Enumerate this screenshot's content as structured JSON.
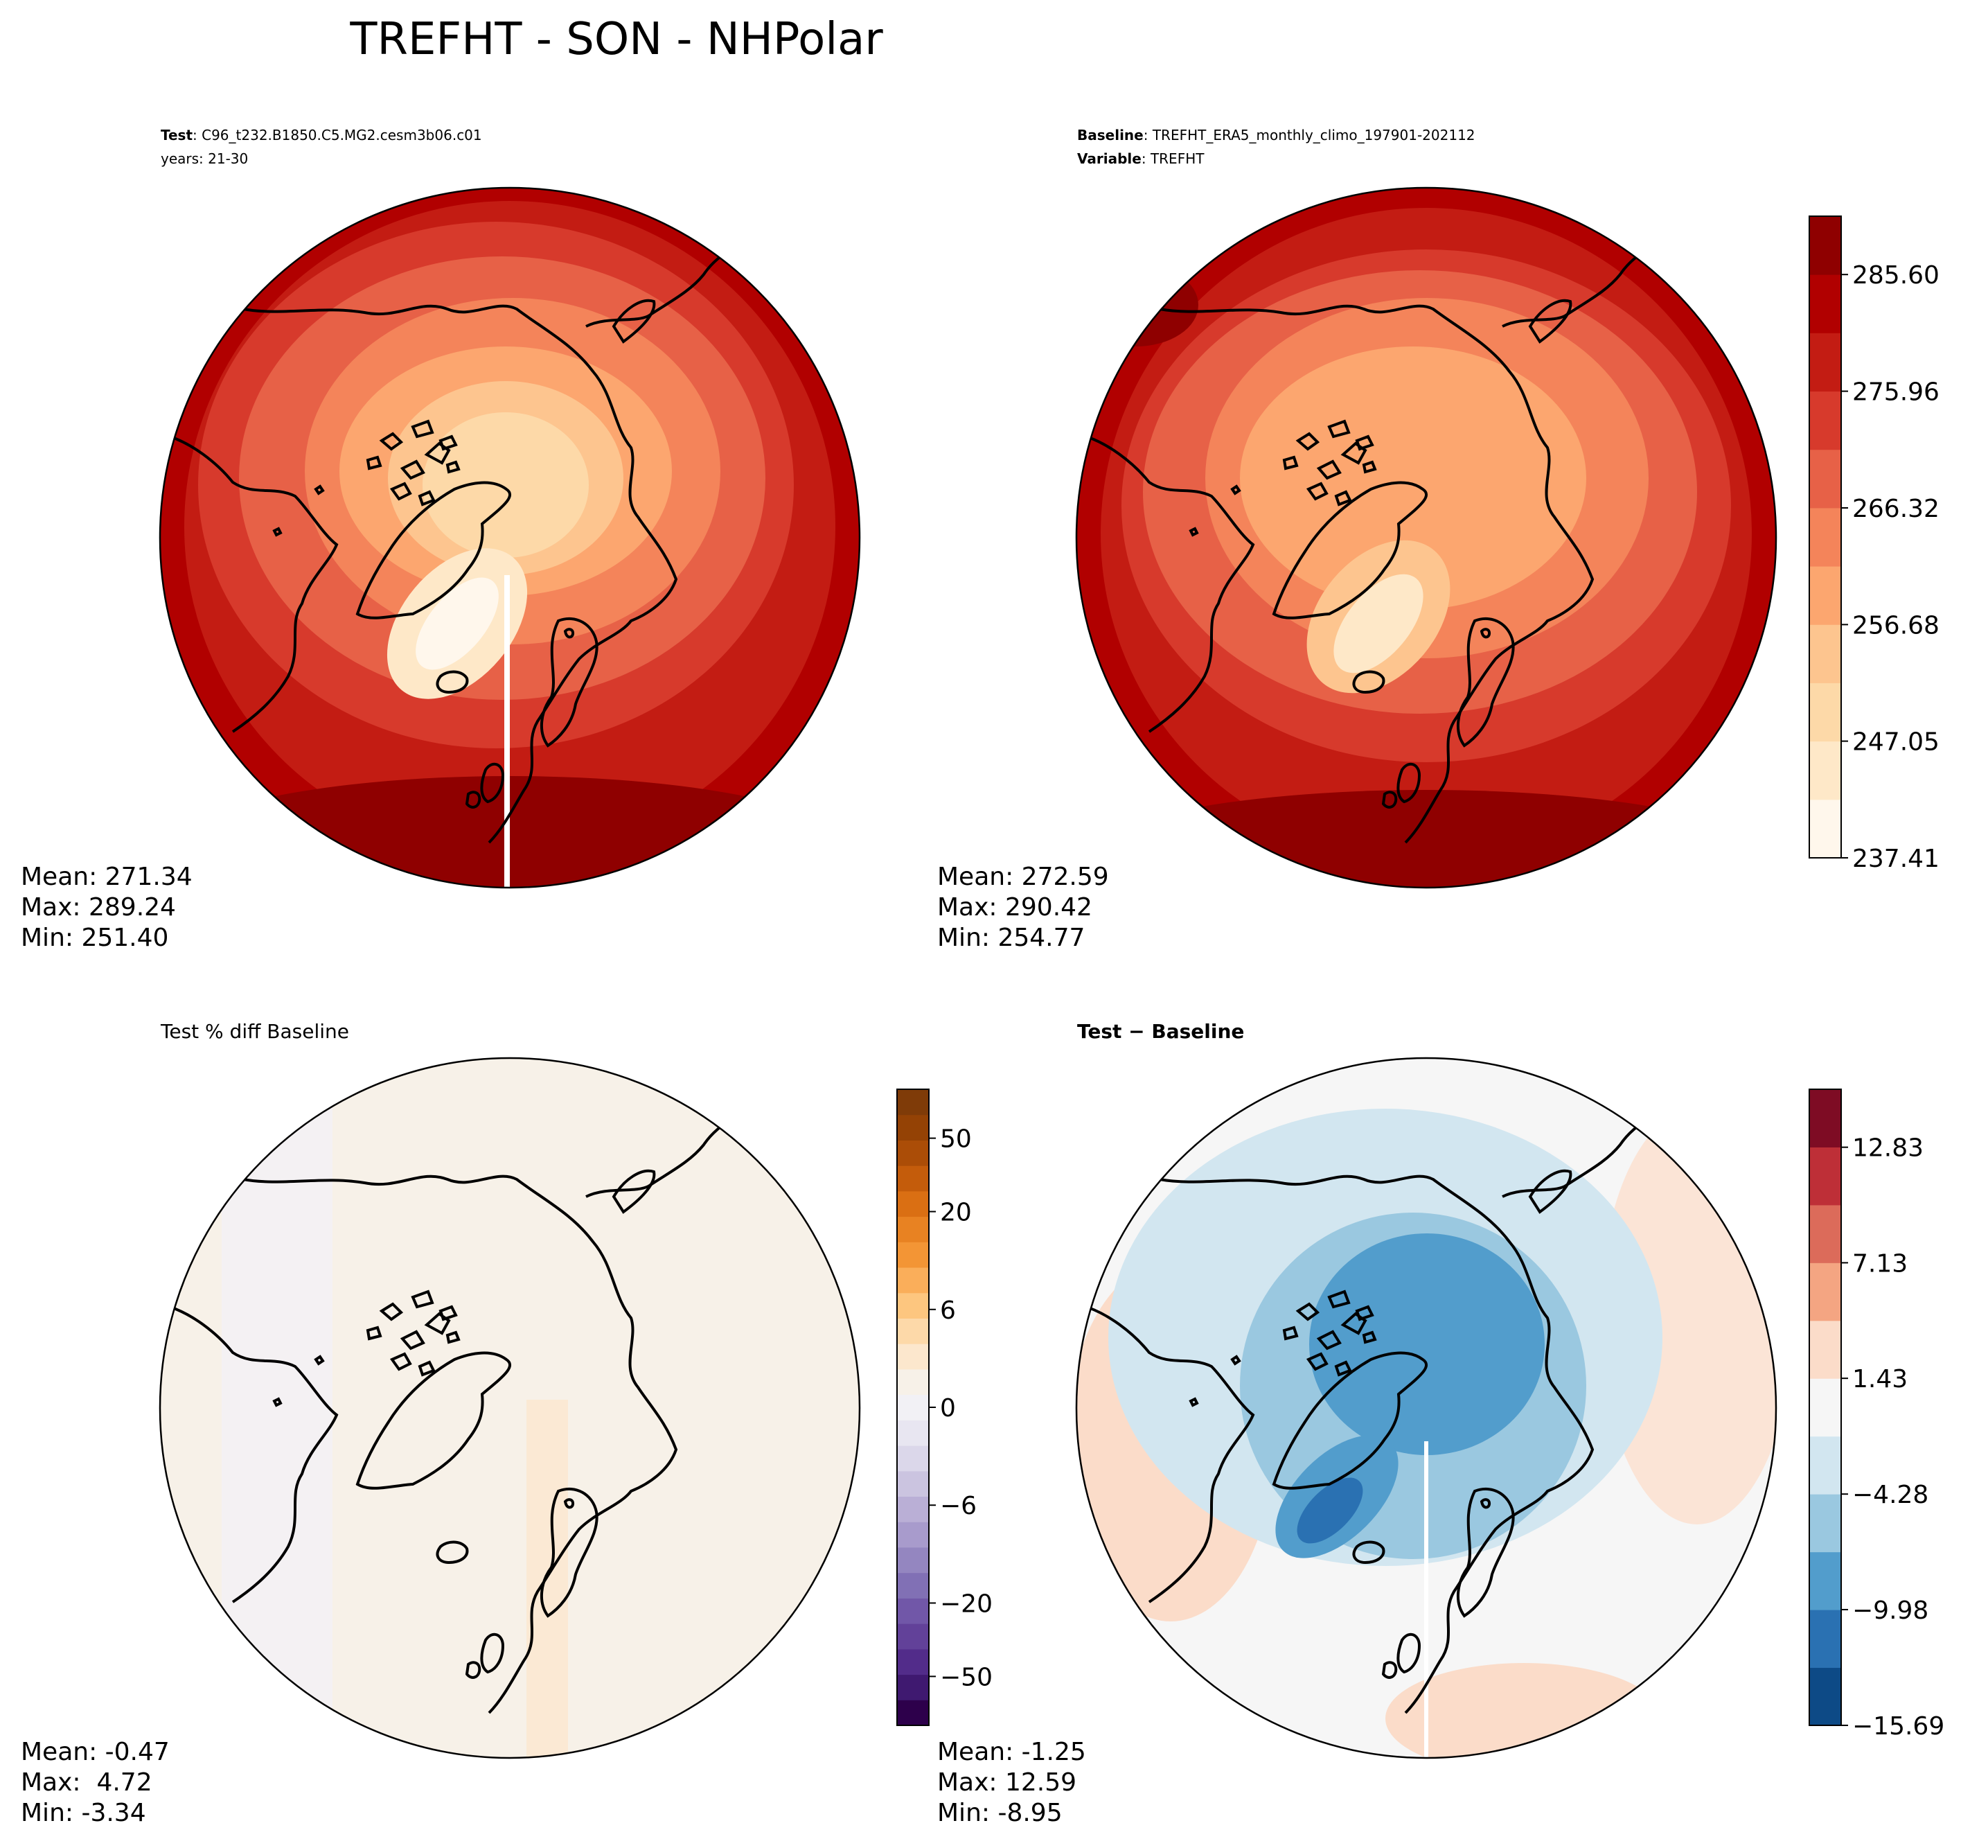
{
  "figure": {
    "title": "TREFHT - SON - NHPolar"
  },
  "chart_data": [
    {
      "type": "heatmap",
      "panel": "test",
      "header": {
        "line1_bold": "Test",
        "line1_rest": ": C96_t232.B1850.C5.MG2.cesm3b06.c01",
        "line2": "years: 21-30"
      },
      "projection": "north-polar-stereographic",
      "colormap": "OrRd",
      "stats": {
        "mean": "Mean: 271.34",
        "max": "Max: 289.24",
        "min": "Min: 251.40"
      },
      "colorbar": "shared with baseline"
    },
    {
      "type": "heatmap",
      "panel": "baseline",
      "header": {
        "line1_bold": "Baseline",
        "line1_rest": ": TREFHT_ERA5_monthly_climo_197901-202112",
        "line2_bold": "Variable",
        "line2_rest": ": TREFHT"
      },
      "projection": "north-polar-stereographic",
      "colormap": "OrRd",
      "stats": {
        "mean": "Mean: 272.59",
        "max": "Max: 290.42",
        "min": "Min: 254.77"
      },
      "colorbar": {
        "ticks": [
          "285.60",
          "275.96",
          "266.32",
          "256.68",
          "247.05",
          "237.41"
        ],
        "tick_values": [
          285.6,
          275.96,
          266.32,
          256.68,
          247.05,
          237.41
        ],
        "range": [
          237.41,
          290.42
        ],
        "colors": [
          "#fff7ec",
          "#fee8c8",
          "#fdd9a8",
          "#fdc58f",
          "#fca66f",
          "#f4845a",
          "#e76147",
          "#d73a2c",
          "#c31c13",
          "#b10000",
          "#8f0000"
        ]
      }
    },
    {
      "type": "heatmap",
      "panel": "pct-diff",
      "header": {
        "line1": "Test % diff Baseline"
      },
      "projection": "north-polar-stereographic",
      "colormap": "PuOr_r",
      "stats": {
        "mean": "Mean: -0.47",
        "max": "Max:  4.72",
        "min": "Min: -3.34"
      },
      "colorbar": {
        "ticks": [
          "50",
          "20",
          "6",
          "0",
          "−6",
          "−20",
          "−50"
        ],
        "tick_values": [
          50,
          20,
          6,
          0,
          -6,
          -20,
          -50
        ],
        "levels": [
          -100,
          -75,
          -50,
          -40,
          -30,
          -20,
          -15,
          -10,
          -8,
          -6,
          -4,
          -2,
          -1,
          0,
          1,
          2,
          4,
          6,
          8,
          10,
          15,
          20,
          30,
          40,
          50,
          75,
          100
        ],
        "colors": [
          "#2d004b",
          "#3f1970",
          "#522c8a",
          "#624199",
          "#7157a8",
          "#8170b5",
          "#9486c0",
          "#a89bcc",
          "#baafd6",
          "#cbc4e0",
          "#dbd7ea",
          "#e8e6f1",
          "#f2f1f5",
          "#f7f1e8",
          "#fce7cd",
          "#fdd9a9",
          "#fdc67f",
          "#faae5a",
          "#f39535",
          "#e88222",
          "#da6f13",
          "#c45c0b",
          "#ab4d07",
          "#944205",
          "#7f3b08"
        ]
      }
    },
    {
      "type": "heatmap",
      "panel": "abs-diff",
      "header": {
        "line1_bold": "Test − Baseline"
      },
      "projection": "north-polar-stereographic",
      "colormap": "RdBu_r",
      "stats": {
        "mean": "Mean: -1.25",
        "max": "Max: 12.59",
        "min": "Min: -8.95"
      },
      "colorbar": {
        "ticks": [
          "12.83",
          "7.13",
          "1.43",
          "−4.28",
          "−9.98",
          "−15.69"
        ],
        "tick_values": [
          12.83,
          7.13,
          1.43,
          -4.28,
          -9.98,
          -15.69
        ],
        "range": [
          -15.69,
          15.69
        ],
        "colors": [
          "#0d4a86",
          "#2a71b2",
          "#529dcc",
          "#9ac8e0",
          "#d2e6f0",
          "#f6f6f6",
          "#fbdcc9",
          "#f4a582",
          "#dc6b5a",
          "#be2f37",
          "#7e0c24"
        ]
      }
    }
  ]
}
